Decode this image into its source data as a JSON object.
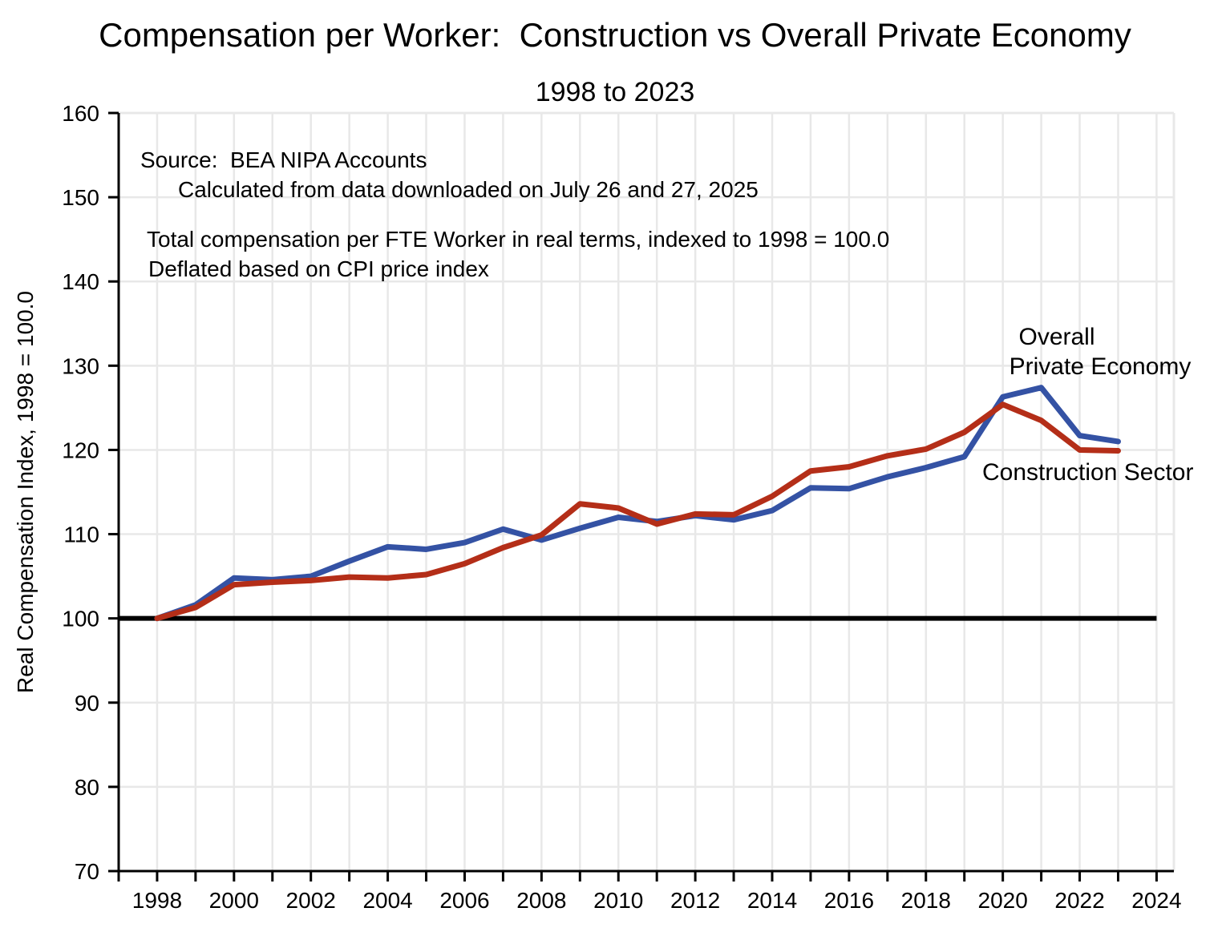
{
  "title": "Compensation per Worker:  Construction vs Overall Private Economy",
  "subtitle": "1998 to 2023",
  "y_axis_title": "Real Compensation Index, 1998 = 100.0",
  "annotations": {
    "source_line1": "Source:  BEA NIPA Accounts",
    "source_line2": "Calculated from data downloaded on July 26 and 27, 2025",
    "note_line1": "Total compensation per FTE Worker in real terms, indexed to 1998 = 100.0",
    "note_line2": "Deflated based on CPI price index"
  },
  "series_labels": {
    "overall_line1": "Overall",
    "overall_line2": "Private Economy",
    "construction": "Construction Sector"
  },
  "colors": {
    "overall": "#3452a4",
    "construction": "#b42e18",
    "grid": "#e8e8e8",
    "axis": "#000000",
    "baseline": "#000000"
  },
  "chart_data": {
    "type": "line",
    "x": [
      1998,
      1999,
      2000,
      2001,
      2002,
      2003,
      2004,
      2005,
      2006,
      2007,
      2008,
      2009,
      2010,
      2011,
      2012,
      2013,
      2014,
      2015,
      2016,
      2017,
      2018,
      2019,
      2020,
      2021,
      2022,
      2023
    ],
    "series": [
      {
        "name": "Overall Private Economy",
        "color_key": "overall",
        "values": [
          100.0,
          101.6,
          104.8,
          104.6,
          105.0,
          106.8,
          108.5,
          108.2,
          109.0,
          110.6,
          109.3,
          110.7,
          112.0,
          111.5,
          112.2,
          111.7,
          112.8,
          115.5,
          115.4,
          116.8,
          117.9,
          119.2,
          126.3,
          127.4,
          121.7,
          121.0
        ]
      },
      {
        "name": "Construction Sector",
        "color_key": "construction",
        "values": [
          100.0,
          101.3,
          104.0,
          104.3,
          104.5,
          104.9,
          104.8,
          105.2,
          106.5,
          108.4,
          109.9,
          113.6,
          113.1,
          111.2,
          112.4,
          112.3,
          114.5,
          117.5,
          118.0,
          119.3,
          120.1,
          122.1,
          125.4,
          123.5,
          120.0,
          119.9
        ]
      }
    ],
    "title": "Compensation per Worker:  Construction vs Overall Private Economy",
    "subtitle": "1998 to 2023",
    "xlabel": "",
    "ylabel": "Real Compensation Index, 1998 = 100.0",
    "xlim": [
      1997,
      2024.45
    ],
    "ylim": [
      70,
      160
    ],
    "x_tick_labels": [
      1998,
      2000,
      2002,
      2004,
      2006,
      2008,
      2010,
      2012,
      2014,
      2016,
      2018,
      2020,
      2022,
      2024
    ],
    "y_ticks": [
      70,
      80,
      90,
      100,
      110,
      120,
      130,
      140,
      150,
      160
    ],
    "baseline_value": 100,
    "baseline_end_x": 2024,
    "grid": true,
    "legend_position": "inline-labels"
  }
}
